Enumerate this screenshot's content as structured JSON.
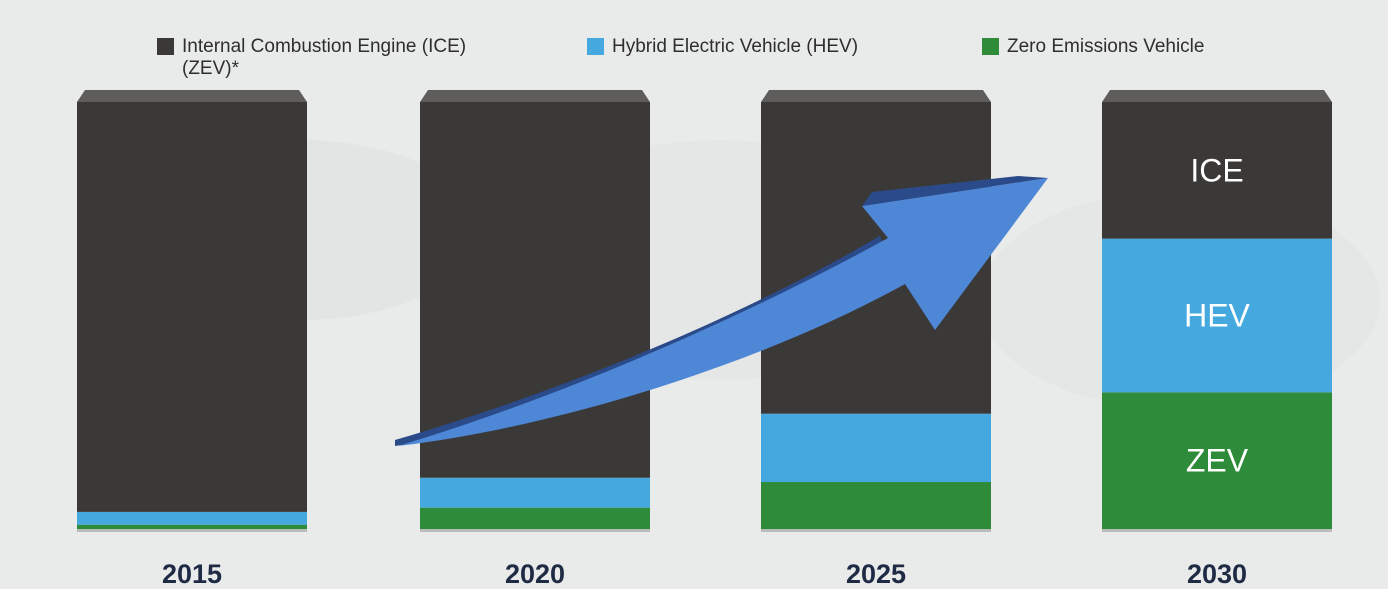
{
  "chart_data": {
    "type": "bar",
    "stacked": true,
    "categories": [
      "2015",
      "2020",
      "2025",
      "2030"
    ],
    "series": [
      {
        "name": "Zero Emissions Vehicle (ZEV)*",
        "short_label": "ZEV",
        "color": "#2e8b3a",
        "values": [
          1,
          5,
          11,
          32
        ]
      },
      {
        "name": "Hybrid Electric Vehicle (HEV)",
        "short_label": "HEV",
        "color": "#45a9df",
        "values": [
          3,
          7,
          16,
          36
        ]
      },
      {
        "name": "Internal Combustion Engine (ICE)",
        "short_label": "ICE",
        "color": "#3b3938",
        "values": [
          96,
          88,
          73,
          32
        ]
      }
    ],
    "ylim": [
      0,
      100
    ],
    "grid": false,
    "legend_position": "top",
    "trend_arrow": true,
    "arrow_color": "#4e87d6"
  },
  "legend": {
    "ice_label": "Internal Combustion Engine (ICE)",
    "hev_label": "Hybrid Electric Vehicle (HEV)",
    "zev_label_line1": "Zero Emissions Vehicle",
    "zev_label_line2": "(ZEV)*"
  }
}
